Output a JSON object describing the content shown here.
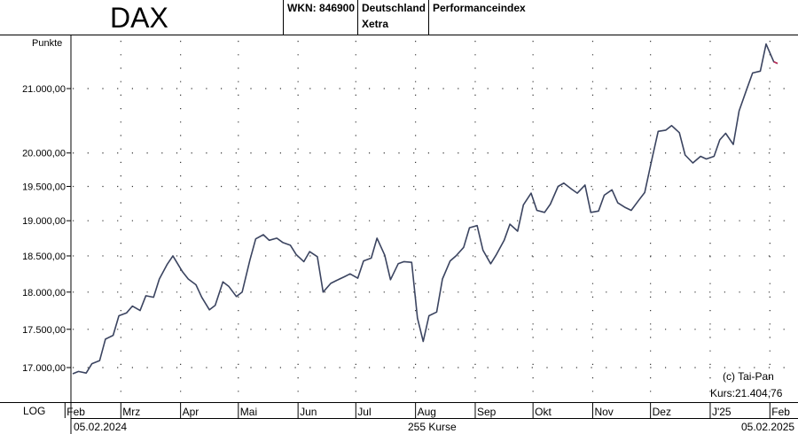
{
  "header": {
    "title": "DAX",
    "wkn": "WKN: 846900",
    "country": "Deutschland",
    "exchange": "Xetra",
    "index_type": "Performanceindex"
  },
  "footer": {
    "scale": "LOG",
    "start_date": "05.02.2024",
    "count": "255 Kurse",
    "end_date": "05.02.2025"
  },
  "chart_data": {
    "type": "line",
    "ylabel": "Punkte",
    "yscale": "log",
    "yticks": [
      17000,
      17500,
      18000,
      18500,
      19000,
      19500,
      20000,
      21000
    ],
    "ytick_labels": [
      "17.000,00",
      "17.500,00",
      "18.000,00",
      "18.500,00",
      "19.000,00",
      "19.500,00",
      "20.000,00",
      "21.000,00"
    ],
    "months": [
      "Feb",
      "Mrz",
      "Apr",
      "Mai",
      "Jun",
      "Jul",
      "Aug",
      "Sep",
      "Okt",
      "Nov",
      "Dez",
      "J'25",
      "Feb"
    ],
    "grid": "dotted",
    "copyright": "(c) Tai-Pan",
    "last_price_label": "Kurs:21.404,76",
    "series": [
      {
        "color": "#3b4460",
        "points": [
          [
            "2024-02-05",
            16920
          ],
          [
            "2024-02-08",
            16950
          ],
          [
            "2024-02-12",
            16930
          ],
          [
            "2024-02-15",
            17050
          ],
          [
            "2024-02-19",
            17090
          ],
          [
            "2024-02-22",
            17370
          ],
          [
            "2024-02-26",
            17420
          ],
          [
            "2024-02-29",
            17680
          ],
          [
            "2024-03-04",
            17720
          ],
          [
            "2024-03-07",
            17810
          ],
          [
            "2024-03-11",
            17750
          ],
          [
            "2024-03-14",
            17950
          ],
          [
            "2024-03-18",
            17930
          ],
          [
            "2024-03-21",
            18180
          ],
          [
            "2024-03-25",
            18380
          ],
          [
            "2024-03-28",
            18500
          ],
          [
            "2024-04-02",
            18280
          ],
          [
            "2024-04-05",
            18180
          ],
          [
            "2024-04-09",
            18100
          ],
          [
            "2024-04-12",
            17930
          ],
          [
            "2024-04-16",
            17760
          ],
          [
            "2024-04-19",
            17820
          ],
          [
            "2024-04-23",
            18140
          ],
          [
            "2024-04-26",
            18080
          ],
          [
            "2024-04-30",
            17940
          ],
          [
            "2024-05-03",
            18000
          ],
          [
            "2024-05-07",
            18440
          ],
          [
            "2024-05-10",
            18740
          ],
          [
            "2024-05-14",
            18800
          ],
          [
            "2024-05-17",
            18720
          ],
          [
            "2024-05-21",
            18750
          ],
          [
            "2024-05-24",
            18690
          ],
          [
            "2024-05-28",
            18650
          ],
          [
            "2024-05-31",
            18520
          ],
          [
            "2024-06-04",
            18420
          ],
          [
            "2024-06-07",
            18560
          ],
          [
            "2024-06-11",
            18490
          ],
          [
            "2024-06-14",
            18000
          ],
          [
            "2024-06-18",
            18120
          ],
          [
            "2024-06-21",
            18160
          ],
          [
            "2024-06-25",
            18210
          ],
          [
            "2024-06-28",
            18250
          ],
          [
            "2024-07-02",
            18190
          ],
          [
            "2024-07-05",
            18430
          ],
          [
            "2024-07-09",
            18470
          ],
          [
            "2024-07-12",
            18750
          ],
          [
            "2024-07-16",
            18510
          ],
          [
            "2024-07-19",
            18170
          ],
          [
            "2024-07-23",
            18390
          ],
          [
            "2024-07-26",
            18420
          ],
          [
            "2024-07-30",
            18410
          ],
          [
            "2024-08-02",
            17650
          ],
          [
            "2024-08-05",
            17340
          ],
          [
            "2024-08-08",
            17680
          ],
          [
            "2024-08-12",
            17730
          ],
          [
            "2024-08-15",
            18180
          ],
          [
            "2024-08-19",
            18430
          ],
          [
            "2024-08-22",
            18500
          ],
          [
            "2024-08-26",
            18620
          ],
          [
            "2024-08-29",
            18900
          ],
          [
            "2024-09-02",
            18930
          ],
          [
            "2024-09-05",
            18580
          ],
          [
            "2024-09-09",
            18390
          ],
          [
            "2024-09-12",
            18520
          ],
          [
            "2024-09-16",
            18720
          ],
          [
            "2024-09-19",
            18950
          ],
          [
            "2024-09-23",
            18850
          ],
          [
            "2024-09-26",
            19230
          ],
          [
            "2024-09-30",
            19400
          ],
          [
            "2024-10-03",
            19150
          ],
          [
            "2024-10-07",
            19120
          ],
          [
            "2024-10-10",
            19240
          ],
          [
            "2024-10-14",
            19500
          ],
          [
            "2024-10-17",
            19550
          ],
          [
            "2024-10-21",
            19460
          ],
          [
            "2024-10-24",
            19400
          ],
          [
            "2024-10-28",
            19520
          ],
          [
            "2024-10-31",
            19120
          ],
          [
            "2024-11-04",
            19140
          ],
          [
            "2024-11-07",
            19370
          ],
          [
            "2024-11-11",
            19450
          ],
          [
            "2024-11-14",
            19260
          ],
          [
            "2024-11-18",
            19190
          ],
          [
            "2024-11-21",
            19150
          ],
          [
            "2024-11-25",
            19300
          ],
          [
            "2024-11-28",
            19410
          ],
          [
            "2024-12-02",
            19940
          ],
          [
            "2024-12-05",
            20330
          ],
          [
            "2024-12-09",
            20350
          ],
          [
            "2024-12-12",
            20420
          ],
          [
            "2024-12-16",
            20310
          ],
          [
            "2024-12-19",
            19970
          ],
          [
            "2024-12-23",
            19850
          ],
          [
            "2024-12-27",
            19950
          ],
          [
            "2024-12-30",
            19909
          ],
          [
            "2025-01-03",
            19950
          ],
          [
            "2025-01-06",
            20200
          ],
          [
            "2025-01-09",
            20300
          ],
          [
            "2025-01-13",
            20130
          ],
          [
            "2025-01-16",
            20650
          ],
          [
            "2025-01-20",
            20990
          ],
          [
            "2025-01-23",
            21250
          ],
          [
            "2025-01-27",
            21280
          ],
          [
            "2025-01-30",
            21720
          ],
          [
            "2025-02-03",
            21430
          ],
          [
            "2025-02-05",
            21404
          ]
        ]
      }
    ]
  }
}
